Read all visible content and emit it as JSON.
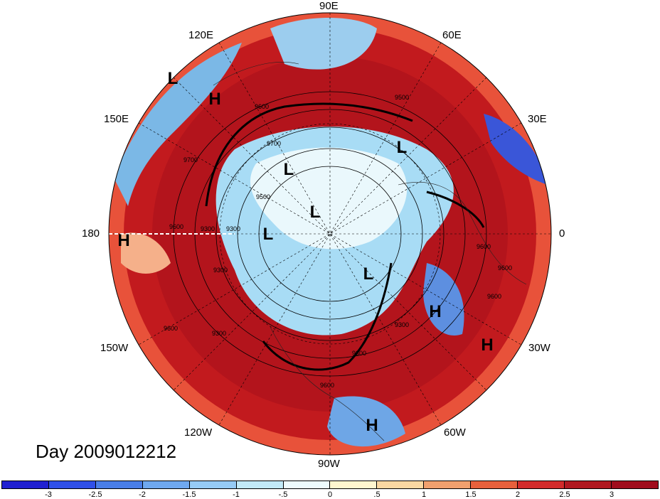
{
  "map": {
    "labels": {
      "lon_90e": "90E",
      "lon_60e": "60E",
      "lon_30e": "30E",
      "lon_0": "0",
      "lon_30w": "30W",
      "lon_60w": "60W",
      "lon_90w": "90W",
      "lon_120w": "120W",
      "lon_150w": "150W",
      "lon_180": "180",
      "lon_150e": "150E",
      "lon_120e": "120E"
    },
    "pressure_centers": {
      "l1": "L",
      "h1": "H",
      "l2": "L",
      "l3": "L",
      "l4": "L",
      "l5": "L",
      "l6": "L",
      "h2": "H",
      "h3": "H",
      "h4": "H",
      "h5": "H"
    },
    "contour_labels": [
      "9500",
      "9600",
      "9700",
      "9300",
      "9300",
      "9600",
      "9600",
      "9300",
      "9600",
      "9300",
      "9600",
      "9600",
      "9300",
      "9600",
      "9500",
      "9700",
      "9300"
    ],
    "colors": {
      "strong_warm": "#a50f15",
      "warm": "#e34a33",
      "light_warm": "#fcae91",
      "cool": "#6baed6",
      "strong_cool": "#2b3fd6"
    }
  },
  "day_label": "Day 2009012212",
  "colorbar": {
    "ticks": [
      "-3",
      "-2.5",
      "-2",
      "-1.5",
      "-1",
      "-.5",
      "0",
      ".5",
      "1",
      "1.5",
      "2",
      "2.5",
      "3"
    ],
    "colors": [
      "#2020d0",
      "#3050e8",
      "#4a7ee8",
      "#6fa8ef",
      "#96cbf5",
      "#c2eaf8",
      "#eefbfd",
      "#fff6cf",
      "#fbd8a2",
      "#f1a06e",
      "#e8603c",
      "#d22b2b",
      "#b01820",
      "#a00c1c"
    ]
  }
}
